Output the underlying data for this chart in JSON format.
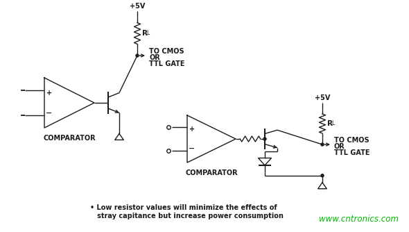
{
  "bg_color": "#ffffff",
  "line_color": "#1a1a1a",
  "text_color": "#1a1a1a",
  "watermark_color": "#00bb00",
  "watermark_text": "www.cntronics.com",
  "footnote_line1": "• Low resistor values will minimize the effects of",
  "footnote_line2": "   stray capitance but increase power consumption",
  "comparator_label": "COMPARATOR",
  "vcc_label": "+5V",
  "rl_label": "R",
  "rl_sub": "L",
  "output_label1": "TO CMOS",
  "output_label2": "OR",
  "output_label3": "TTL GATE"
}
